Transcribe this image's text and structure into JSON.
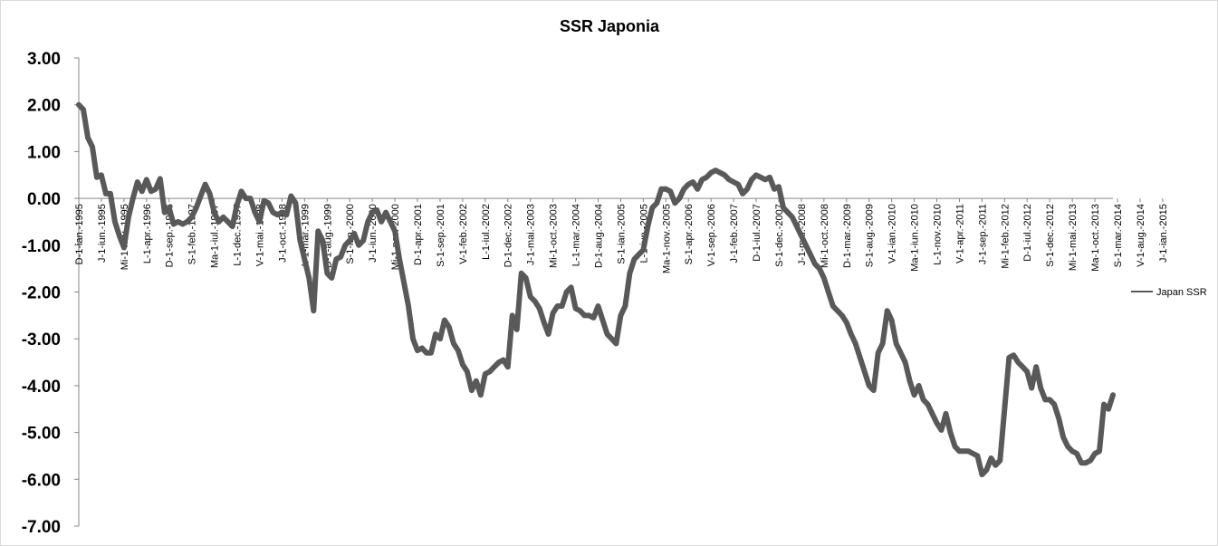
{
  "chart_data": {
    "type": "line",
    "title": "SSR Japonia",
    "xlabel": "",
    "ylabel": "",
    "ylim": [
      -7,
      3
    ],
    "yticks": [
      "3.00",
      "2.00",
      "1.00",
      "0.00",
      "-1.00",
      "-2.00",
      "-3.00",
      "-4.00",
      "-5.00",
      "-6.00",
      "-7.00"
    ],
    "x_start": "1995-01",
    "x_end": "2015-05",
    "grid": "horizontal-none",
    "legend_position": "right",
    "xtick_labels": [
      {
        "month": 0,
        "label": "D-1-ian.-1995"
      },
      {
        "month": 5,
        "label": "J-1-iun.-1995"
      },
      {
        "month": 10,
        "label": "Mi-1-nov.-1995"
      },
      {
        "month": 15,
        "label": "L-1-apr.-1996"
      },
      {
        "month": 20,
        "label": "D-1-sep.-1996"
      },
      {
        "month": 25,
        "label": "S-1-feb.-1997"
      },
      {
        "month": 30,
        "label": "Ma-1-iul.-1997"
      },
      {
        "month": 35,
        "label": "L-1-dec.-1997"
      },
      {
        "month": 40,
        "label": "V-1-mai.-1998"
      },
      {
        "month": 45,
        "label": "J-1-oct.-1998"
      },
      {
        "month": 50,
        "label": "L-1-mar.-1999"
      },
      {
        "month": 55,
        "label": "D-1-aug.-1999"
      },
      {
        "month": 60,
        "label": "S-1-ian.-2000"
      },
      {
        "month": 65,
        "label": "J-1-iun.-2000"
      },
      {
        "month": 70,
        "label": "Mi-1-nov.-2000"
      },
      {
        "month": 75,
        "label": "D-1-apr.-2001"
      },
      {
        "month": 80,
        "label": "S-1-sep.-2001"
      },
      {
        "month": 85,
        "label": "V-1-feb.-2002"
      },
      {
        "month": 90,
        "label": "L-1-iul.-2002"
      },
      {
        "month": 95,
        "label": "D-1-dec.-2002"
      },
      {
        "month": 100,
        "label": "J-1-mai.-2003"
      },
      {
        "month": 105,
        "label": "Mi-1-oct.-2003"
      },
      {
        "month": 110,
        "label": "L-1-mar.-2004"
      },
      {
        "month": 115,
        "label": "D-1-aug.-2004"
      },
      {
        "month": 120,
        "label": "S-1-ian.-2005"
      },
      {
        "month": 125,
        "label": "L-1-iun.-2005"
      },
      {
        "month": 130,
        "label": "Ma-1-nov.-2005"
      },
      {
        "month": 135,
        "label": "S-1-apr.-2006"
      },
      {
        "month": 140,
        "label": "V-1-sep.-2006"
      },
      {
        "month": 145,
        "label": "J-1-feb.-2007"
      },
      {
        "month": 150,
        "label": "D-1-iul.-2007"
      },
      {
        "month": 155,
        "label": "S-1-dec.-2007"
      },
      {
        "month": 160,
        "label": "J-1-mai.-2008"
      },
      {
        "month": 165,
        "label": "Mi-1-oct.-2008"
      },
      {
        "month": 170,
        "label": "D-1-mar.-2009"
      },
      {
        "month": 175,
        "label": "S-1-aug.-2009"
      },
      {
        "month": 180,
        "label": "V-1-ian.-2010"
      },
      {
        "month": 185,
        "label": "Ma-1-iun.-2010"
      },
      {
        "month": 190,
        "label": "L-1-nov.-2010"
      },
      {
        "month": 195,
        "label": "V-1-apr.-2011"
      },
      {
        "month": 200,
        "label": "J-1-sep.-2011"
      },
      {
        "month": 205,
        "label": "Mi-1-feb.-2012"
      },
      {
        "month": 210,
        "label": "D-1-iul.-2012"
      },
      {
        "month": 215,
        "label": "S-1-dec.-2012"
      },
      {
        "month": 220,
        "label": "Mi-1-mai.-2013"
      },
      {
        "month": 225,
        "label": "Ma-1-oct.-2013"
      },
      {
        "month": 230,
        "label": "S-1-mar.-2014"
      },
      {
        "month": 235,
        "label": "V-1-aug.-2014"
      },
      {
        "month": 240,
        "label": "J-1-ian.-2015"
      }
    ],
    "series": [
      {
        "name": "Japan SSR",
        "color": "#595959",
        "values": [
          2.0,
          1.9,
          1.3,
          1.1,
          0.45,
          0.5,
          0.1,
          0.1,
          -0.5,
          -0.8,
          -1.05,
          -0.4,
          0.0,
          0.35,
          0.15,
          0.4,
          0.15,
          0.2,
          0.42,
          -0.3,
          -0.2,
          -0.55,
          -0.5,
          -0.55,
          -0.5,
          -0.4,
          -0.2,
          0.05,
          0.3,
          0.1,
          -0.3,
          -0.5,
          -0.4,
          -0.5,
          -0.6,
          -0.15,
          0.15,
          0.0,
          0.0,
          -0.3,
          -0.5,
          -0.05,
          -0.1,
          -0.3,
          -0.35,
          -0.3,
          -0.35,
          0.05,
          -0.1,
          -0.9,
          -1.3,
          -1.7,
          -2.4,
          -0.7,
          -0.9,
          -1.6,
          -1.7,
          -1.3,
          -1.25,
          -1.0,
          -0.9,
          -0.75,
          -1.0,
          -0.9,
          -0.5,
          -0.3,
          -0.25,
          -0.5,
          -0.3,
          -0.5,
          -0.7,
          -1.3,
          -1.8,
          -2.3,
          -3.0,
          -3.25,
          -3.2,
          -3.3,
          -3.3,
          -2.9,
          -3.0,
          -2.6,
          -2.75,
          -3.1,
          -3.25,
          -3.55,
          -3.7,
          -4.1,
          -3.9,
          -4.2,
          -3.75,
          -3.7,
          -3.6,
          -3.5,
          -3.45,
          -3.6,
          -2.5,
          -2.8,
          -1.6,
          -1.7,
          -2.1,
          -2.2,
          -2.35,
          -2.65,
          -2.9,
          -2.45,
          -2.3,
          -2.3,
          -2.0,
          -1.9,
          -2.35,
          -2.4,
          -2.5,
          -2.5,
          -2.55,
          -2.3,
          -2.6,
          -2.9,
          -3.0,
          -3.1,
          -2.5,
          -2.3,
          -1.6,
          -1.3,
          -1.2,
          -1.1,
          -0.6,
          -0.2,
          -0.1,
          0.2,
          0.2,
          0.15,
          -0.1,
          0.0,
          0.2,
          0.3,
          0.35,
          0.2,
          0.4,
          0.45,
          0.55,
          0.6,
          0.55,
          0.5,
          0.4,
          0.35,
          0.3,
          0.1,
          0.2,
          0.4,
          0.5,
          0.45,
          0.4,
          0.45,
          0.2,
          0.25,
          -0.2,
          -0.3,
          -0.4,
          -0.6,
          -0.8,
          -1.0,
          -1.2,
          -1.4,
          -1.5,
          -1.7,
          -2.0,
          -2.3,
          -2.4,
          -2.5,
          -2.65,
          -2.9,
          -3.1,
          -3.4,
          -3.7,
          -4.0,
          -4.1,
          -3.3,
          -3.1,
          -2.4,
          -2.6,
          -3.1,
          -3.3,
          -3.5,
          -3.9,
          -4.2,
          -4.0,
          -4.3,
          -4.4,
          -4.6,
          -4.8,
          -4.95,
          -4.6,
          -5.0,
          -5.3,
          -5.4,
          -5.4,
          -5.4,
          -5.45,
          -5.5,
          -5.9,
          -5.8,
          -5.55,
          -5.7,
          -5.6,
          -4.5,
          -3.4,
          -3.35,
          -3.5,
          -3.6,
          -3.7,
          -4.05,
          -3.6,
          -4.05,
          -4.3,
          -4.3,
          -4.4,
          -4.7,
          -5.1,
          -5.3,
          -5.4,
          -5.45,
          -5.65,
          -5.65,
          -5.6,
          -5.45,
          -5.4,
          -4.4,
          -4.5,
          -4.2
        ]
      }
    ]
  }
}
